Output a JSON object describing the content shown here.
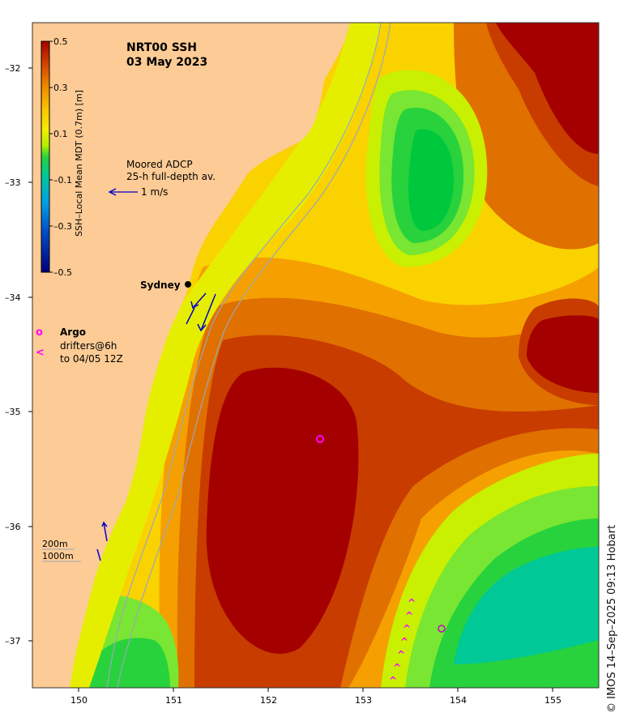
{
  "title": {
    "line1": "NRT00 SSH",
    "line2": "03 May 2023"
  },
  "colorbar": {
    "label": "SSH–Local Mean MDT (0.7m) [m]",
    "ticks": [
      "0.5",
      "0.3",
      "0.1",
      "–0.1",
      "–0.3",
      "–0.5"
    ],
    "colors": [
      "#a50000",
      "#c83200",
      "#e05a00",
      "#f08c00",
      "#f5b400",
      "#fad200",
      "#f5eb00",
      "#c8f000",
      "#78e632",
      "#00c83c",
      "#00c8a0",
      "#00a0e6",
      "#0064c8",
      "#0028a0",
      "#000078"
    ]
  },
  "adcp": {
    "line1": "Moored ADCP",
    "line2": "25-h full-depth av.",
    "scale_label": "1 m/s"
  },
  "place": {
    "sydney": "Sydney"
  },
  "legend": {
    "argo_symbol": "o",
    "argo_label": "Argo",
    "drifter_symbol": "<",
    "drifter_line1": "drifters@6h",
    "drifter_line2": "to 04/05 12Z"
  },
  "isobaths": {
    "line1": "200m",
    "line2": "1000m"
  },
  "axes": {
    "lat_ticks": [
      "–32",
      "–33",
      "–34",
      "–35",
      "–36",
      "–37"
    ],
    "lon_ticks": [
      "150",
      "151",
      "152",
      "153",
      "154",
      "155"
    ]
  },
  "credit": "© IMOS 14–Sep–2025 09:13 Hobart",
  "palette": {
    "land": "#fdcb95",
    "argo": "#ff00ff",
    "adcp": "#0000cc",
    "isobath": "#9aa8b8"
  }
}
